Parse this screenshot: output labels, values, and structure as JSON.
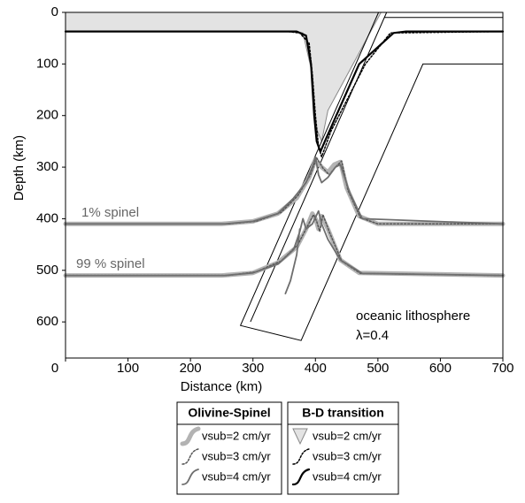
{
  "chart_data": {
    "type": "line",
    "xlabel": "Distance (km)",
    "ylabel": "Depth (km)",
    "xlim": [
      0,
      700
    ],
    "ylim": [
      670,
      0
    ],
    "xticks": [
      0,
      100,
      200,
      300,
      400,
      500,
      600,
      700
    ],
    "yticks": [
      0,
      100,
      200,
      300,
      400,
      500,
      600
    ],
    "annotations": [
      "1% spinel",
      "99 % spinel",
      "oceanic lithosphere",
      "λ=0.4"
    ],
    "legend_titles": [
      "Olivine-Spinel",
      "B-D transition"
    ],
    "outline": {
      "color": "#000000",
      "x": [
        501,
        280,
        377,
        572,
        700,
        null,
        514,
        296,
        null,
        510,
        700
      ],
      "values": [
        0,
        607,
        636,
        100,
        100,
        null,
        0,
        600,
        null,
        10,
        10
      ]
    },
    "series": [
      {
        "name": "vsub=2 cm/yr",
        "group": 0,
        "color": "#b3b3b3",
        "width": 5,
        "dash": "none",
        "x": [
          0,
          250,
          300,
          340,
          370,
          390,
          400,
          410,
          420,
          430,
          440,
          450,
          470,
          500,
          700,
          null,
          0,
          250,
          300,
          340,
          370,
          385,
          395,
          400,
          405,
          410,
          420,
          440,
          470,
          700
        ],
        "values": [
          410,
          410,
          405,
          390,
          360,
          320,
          285,
          300,
          310,
          295,
          290,
          340,
          395,
          410,
          410,
          null,
          510,
          510,
          505,
          485,
          455,
          420,
          390,
          400,
          420,
          395,
          420,
          480,
          505,
          510
        ]
      },
      {
        "name": "vsub=3 cm/yr",
        "group": 0,
        "color": "#555555",
        "width": 1.5,
        "dash": "2 2",
        "x": [
          0,
          260,
          305,
          345,
          372,
          392,
          402,
          412,
          422,
          432,
          442,
          452,
          472,
          500,
          700,
          null,
          0,
          260,
          305,
          345,
          372,
          387,
          397,
          402,
          407,
          412,
          422,
          442,
          472,
          700
        ],
        "values": [
          410,
          410,
          405,
          388,
          355,
          315,
          282,
          302,
          315,
          300,
          288,
          345,
          398,
          410,
          410,
          null,
          510,
          510,
          503,
          482,
          450,
          415,
          392,
          405,
          425,
          392,
          425,
          482,
          506,
          510
        ]
      },
      {
        "name": "vsub=4 cm/yr",
        "group": 0,
        "color": "#6e6e6e",
        "width": 1.8,
        "dash": "none",
        "x": [
          0,
          255,
          300,
          340,
          365,
          385,
          395,
          400,
          405,
          410,
          420,
          432,
          440,
          455,
          475,
          700,
          null,
          0,
          255,
          300,
          340,
          365,
          375,
          380,
          385,
          395,
          405,
          410,
          420,
          440,
          475,
          700,
          null,
          375,
          370,
          360,
          352
        ],
        "values": [
          410,
          410,
          405,
          390,
          360,
          330,
          300,
          280,
          315,
          330,
          320,
          300,
          295,
          350,
          400,
          410,
          null,
          510,
          510,
          505,
          488,
          460,
          425,
          400,
          420,
          410,
          385,
          410,
          440,
          480,
          506,
          510,
          null,
          420,
          470,
          520,
          545
        ]
      },
      {
        "name": "vsub=2 cm/yr",
        "group": 1,
        "color": "#888888",
        "width": 1,
        "dash": "none",
        "fill": "#e3e3e3",
        "x": [
          0,
          505,
          420,
          410,
          400,
          395,
          380,
          370,
          0
        ],
        "values": [
          0,
          0,
          190,
          250,
          220,
          120,
          40,
          37,
          37
        ]
      },
      {
        "name": "vsub=3 cm/yr",
        "group": 1,
        "color": "#000000",
        "width": 1.5,
        "dash": "2 2",
        "x": [
          0,
          355,
          375,
          390,
          395,
          400,
          405,
          410,
          425,
          480,
          520,
          700
        ],
        "values": [
          37,
          37,
          40,
          60,
          120,
          200,
          260,
          280,
          230,
          100,
          40,
          37
        ]
      },
      {
        "name": "vsub=4 cm/yr",
        "group": 1,
        "color": "#000000",
        "width": 2.2,
        "dash": "none",
        "x": [
          0,
          370,
          385,
          393,
          398,
          402,
          408,
          415,
          470,
          525,
          545,
          700
        ],
        "values": [
          37,
          37,
          45,
          100,
          200,
          250,
          270,
          250,
          100,
          40,
          37,
          37
        ]
      }
    ]
  }
}
